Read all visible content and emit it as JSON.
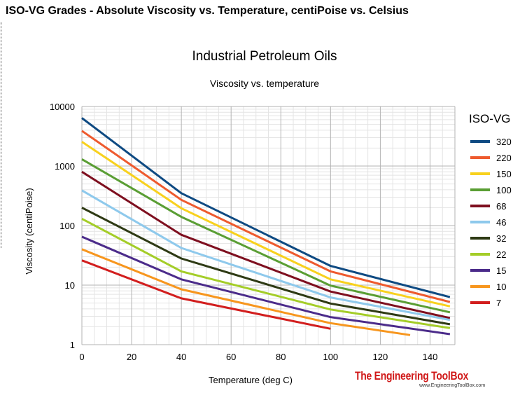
{
  "page": {
    "heading": "ISO-VG Grades - Absolute Viscosity vs. Temperature, centiPoise vs. Celsius"
  },
  "branding": {
    "name": "The Engineering ToolBox",
    "url": "www.EngineeringToolBox.com",
    "color": "#d01818"
  },
  "chart_data": {
    "type": "line",
    "title": "Industrial Petroleum Oils",
    "subtitle": "Viscosity vs. temperature",
    "xlabel": "Temperature (deg C)",
    "ylabel": "Viscosity (centiPoise)",
    "xlim": [
      0,
      150
    ],
    "ylim": [
      1,
      10000
    ],
    "yscale": "log",
    "xticks": [
      "0",
      "20",
      "40",
      "60",
      "80",
      "100",
      "120",
      "140"
    ],
    "yticks": [
      "1",
      "10",
      "100",
      "1000",
      "10000"
    ],
    "grid": true,
    "legend_title": "ISO-VG",
    "legend_position": "right",
    "series": [
      {
        "name": "320",
        "color": "#0e4a82",
        "x": [
          0,
          40,
          100,
          148
        ],
        "y": [
          6400,
          350,
          21,
          6.3
        ]
      },
      {
        "name": "220",
        "color": "#ee5a2e",
        "x": [
          0,
          40,
          100,
          148
        ],
        "y": [
          3900,
          270,
          17,
          5.2
        ]
      },
      {
        "name": "150",
        "color": "#f8d11e",
        "x": [
          0,
          40,
          100,
          148
        ],
        "y": [
          2550,
          195,
          12.5,
          4.4
        ]
      },
      {
        "name": "100",
        "color": "#5a9e34",
        "x": [
          0,
          40,
          100,
          148
        ],
        "y": [
          1300,
          140,
          9.8,
          3.5
        ]
      },
      {
        "name": "68",
        "color": "#7e0f1f",
        "x": [
          0,
          40,
          100,
          148
        ],
        "y": [
          800,
          70,
          7.8,
          2.8
        ]
      },
      {
        "name": "46",
        "color": "#8ec9ec",
        "x": [
          0,
          40,
          100,
          148
        ],
        "y": [
          390,
          42,
          6.2,
          2.6
        ]
      },
      {
        "name": "32",
        "color": "#2e3a14",
        "x": [
          0,
          40,
          100,
          148
        ],
        "y": [
          200,
          28,
          4.9,
          2.2
        ]
      },
      {
        "name": "22",
        "color": "#a4cd28",
        "x": [
          0,
          40,
          100,
          148
        ],
        "y": [
          130,
          17,
          3.9,
          1.9
        ]
      },
      {
        "name": "15",
        "color": "#4b2b8a",
        "x": [
          0,
          40,
          100,
          148
        ],
        "y": [
          65,
          12.5,
          2.9,
          1.5
        ]
      },
      {
        "name": "10",
        "color": "#f7961e",
        "x": [
          0,
          40,
          100,
          132
        ],
        "y": [
          40,
          8.5,
          2.3,
          1.45
        ]
      },
      {
        "name": "7",
        "color": "#d21e1e",
        "x": [
          0,
          40,
          100
        ],
        "y": [
          26,
          6,
          1.85
        ]
      }
    ]
  }
}
